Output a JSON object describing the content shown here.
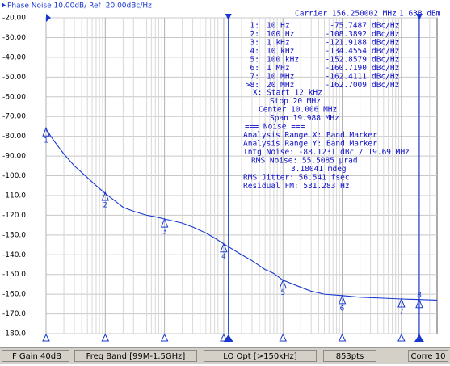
{
  "header": "Phase Noise 10.00dB/ Ref -20.00dBc/Hz",
  "carrier": "Carrier 156.250002 MHz",
  "power": "1.638 dBm",
  "marker_table": [
    [
      "1:",
      "10 Hz",
      "-75.7487",
      "dBc/Hz"
    ],
    [
      "2:",
      "100 Hz",
      "-108.3892",
      "dBc/Hz"
    ],
    [
      "3:",
      "1 kHz",
      "-121.9188",
      "dBc/Hz"
    ],
    [
      "4:",
      "10 kHz",
      "-134.4554",
      "dBc/Hz"
    ],
    [
      "5:",
      "100 kHz",
      "-152.8579",
      "dBc/Hz"
    ],
    [
      "6:",
      "1 MHz",
      "-160.7190",
      "dBc/Hz"
    ],
    [
      "7:",
      "10 MHz",
      "-162.4111",
      "dBc/Hz"
    ],
    [
      ">8:",
      "20 MHz",
      "-162.7009",
      "dBc/Hz"
    ]
  ],
  "info": [
    "X: Start 12 kHz",
    "Stop 20 MHz",
    "Center 10.006 MHz",
    "Span 19.988 MHz",
    "=== Noise ===",
    "Analysis Range X: Band Marker",
    "Analysis Range Y: Band Marker",
    "Intg Noise: -88.1231 dBc / 19.69 MHz",
    "RMS Noise: 55.5085 µrad",
    "3.18041 mdeg",
    "RMS Jitter: 56.541 fsec",
    "Residual FM: 531.283 Hz"
  ],
  "status": [
    "IF Gain 40dB",
    "Freq Band [99M-1.5GHz]",
    "LO Opt [>150kHz]",
    "853pts",
    "Corre 10"
  ],
  "chart_data": {
    "type": "line",
    "x_scale": "log",
    "xlim": [
      10,
      40000000
    ],
    "ylim": [
      -180,
      -20
    ],
    "xticks": [
      10,
      100,
      1000,
      10000,
      100000,
      1000000,
      10000000
    ],
    "yticks": [
      {
        "value": -20,
        "label": "-20.00"
      },
      {
        "value": -30,
        "label": "-30.00"
      },
      {
        "value": -40,
        "label": "-40.00"
      },
      {
        "value": -50,
        "label": "-50.00"
      },
      {
        "value": -60,
        "label": "-60.00"
      },
      {
        "value": -70,
        "label": "-70.00"
      },
      {
        "value": -80,
        "label": "-80.00"
      },
      {
        "value": -90,
        "label": "-90.00"
      },
      {
        "value": -100,
        "label": "-100.0"
      },
      {
        "value": -110,
        "label": "-110.0"
      },
      {
        "value": -120,
        "label": "-120.0"
      },
      {
        "value": -130,
        "label": "-130.0"
      },
      {
        "value": -140,
        "label": "-140.0"
      },
      {
        "value": -150,
        "label": "-150.0"
      },
      {
        "value": -160,
        "label": "-160.0"
      },
      {
        "value": -170,
        "label": "-170.0"
      },
      {
        "value": -180,
        "label": "-180.0"
      }
    ],
    "grid": true,
    "series": [
      {
        "color": "#1838d0",
        "x": [
          10,
          11,
          12,
          15,
          20,
          30,
          50,
          70,
          100,
          150,
          200,
          300,
          500,
          700,
          1000,
          2000,
          3000,
          5000,
          7000,
          10000,
          20000,
          30000,
          50000,
          60000,
          70000,
          100000,
          200000,
          300000,
          500000,
          1000000,
          1200000,
          2000000,
          5000000,
          10000000,
          20000000,
          40000000
        ],
        "values": [
          -77,
          -78,
          -80,
          -84,
          -89,
          -95,
          -101,
          -105,
          -109,
          -113,
          -116,
          -118,
          -120,
          -120.8,
          -121.9,
          -124,
          -126,
          -129,
          -131.5,
          -134.5,
          -140,
          -143,
          -147.5,
          -148.5,
          -149.5,
          -152.9,
          -156.5,
          -158.5,
          -160,
          -160.7,
          -160.9,
          -161.5,
          -162,
          -162.4,
          -162.7,
          -163
        ]
      }
    ],
    "markers": {
      "labels": [
        "1",
        "2",
        "3",
        "4",
        "5",
        "6",
        "7",
        "8"
      ],
      "x": [
        10,
        100,
        1000,
        10000,
        100000,
        1000000,
        10000000,
        20000000
      ],
      "values": [
        -75.7487,
        -108.3892,
        -121.9188,
        -134.4554,
        -152.8579,
        -160.719,
        -162.4111,
        -162.7009
      ]
    },
    "band_x": [
      12000,
      20000000
    ]
  }
}
